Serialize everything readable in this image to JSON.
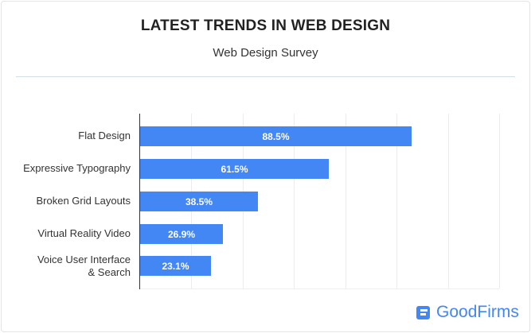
{
  "header": {
    "title": "LATEST TRENDS IN WEB DESIGN",
    "subtitle": "Web Design Survey"
  },
  "brand": {
    "name": "GoodFirms",
    "icon": "goodfirms-logo-icon",
    "color": "#4387f5"
  },
  "chart_data": {
    "type": "bar",
    "orientation": "horizontal",
    "title": "LATEST TRENDS IN WEB DESIGN",
    "subtitle": "Web Design Survey",
    "xlabel": "",
    "ylabel": "",
    "categories": [
      "Flat Design",
      "Expressive Typography",
      "Broken Grid Layouts",
      "Virtual Reality Video",
      "Voice User Interface & Search"
    ],
    "values": [
      88.5,
      61.5,
      38.5,
      26.9,
      23.1
    ],
    "data_labels": [
      "88.5%",
      "61.5%",
      "38.5%",
      "26.9%",
      "23.1%"
    ],
    "unit": "%",
    "bar_color": "#4387f5",
    "grid": true,
    "legend": null
  },
  "labels": [
    {
      "line1": "Flat Design",
      "line2": ""
    },
    {
      "line1": "Expressive Typography",
      "line2": ""
    },
    {
      "line1": "Broken Grid Layouts",
      "line2": ""
    },
    {
      "line1": "Virtual Reality Video",
      "line2": ""
    },
    {
      "line1": "Voice User Interface",
      "line2": "& Search"
    }
  ]
}
